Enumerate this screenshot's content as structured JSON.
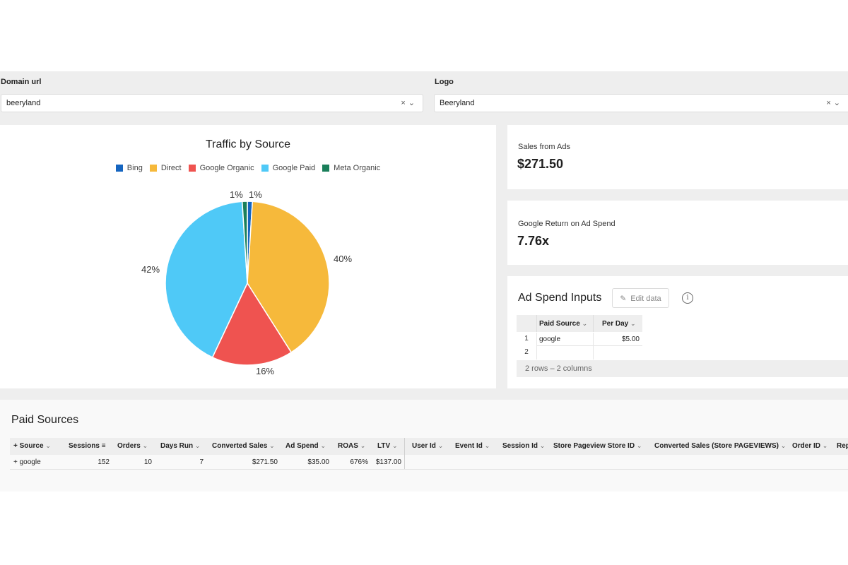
{
  "filters": {
    "domain": {
      "label": "Domain url",
      "value": "beeryland"
    },
    "logo": {
      "label": "Logo",
      "value": "Beeryland"
    },
    "clear_icon": "×",
    "dropdown_icon": "⌄"
  },
  "traffic_chart": {
    "legend": [
      "Bing",
      "Direct",
      "Google Organic",
      "Google Paid",
      "Meta Organic"
    ],
    "slice_labels": {
      "bing": "1%",
      "meta": "1%",
      "direct": "40%",
      "google_organic": "16%",
      "google_paid": "42%"
    }
  },
  "chart_data": {
    "type": "pie",
    "title": "Traffic by Source",
    "categories": [
      "Bing",
      "Direct",
      "Google Organic",
      "Google Paid",
      "Meta Organic"
    ],
    "values": [
      1,
      40,
      16,
      42,
      1
    ],
    "colors": [
      "#1565c0",
      "#f6b93b",
      "#ef5350",
      "#4fc9f7",
      "#1a7f5a"
    ],
    "legend_position": "top"
  },
  "metrics": {
    "sales_from_ads": {
      "label": "Sales from Ads",
      "value": "$271.50"
    },
    "google_roas": {
      "label": "Google Return on Ad Spend",
      "value": "7.76x"
    }
  },
  "ad_spend": {
    "title": "Ad Spend Inputs",
    "edit_label": "Edit data",
    "info_glyph": "i",
    "columns": [
      "Paid Source",
      "Per Day"
    ],
    "rows": [
      {
        "num": "1",
        "source": "google",
        "per_day": "$5.00"
      },
      {
        "num": "2",
        "source": "",
        "per_day": ""
      }
    ],
    "footer": "2 rows – 2 columns"
  },
  "paid_sources": {
    "title": "Paid Sources",
    "columns": [
      "Source",
      "Sessions",
      "Orders",
      "Days Run",
      "Converted Sales",
      "Ad Spend",
      "ROAS",
      "LTV",
      "User Id",
      "Event Id",
      "Session Id",
      "Store Pageview Store ID",
      "Converted Sales (Store PAGEVIEWS)",
      "Order ID",
      "Rep"
    ],
    "row": {
      "source": "google",
      "sessions": "152",
      "orders": "10",
      "days_run": "7",
      "converted_sales": "$271.50",
      "ad_spend": "$35.00",
      "roas": "676%",
      "ltv": "$137.00"
    }
  }
}
